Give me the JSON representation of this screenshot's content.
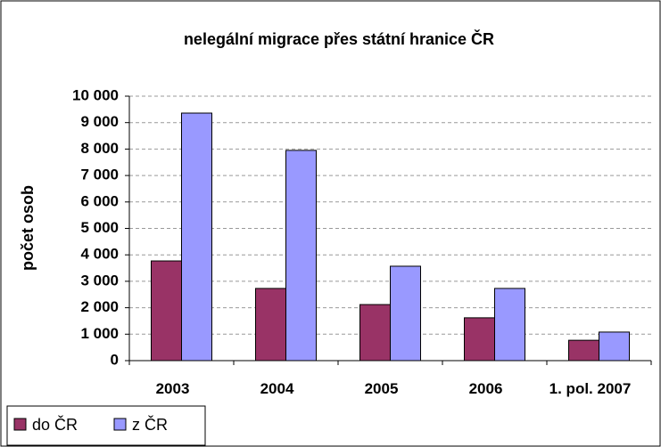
{
  "chart_data": {
    "type": "bar",
    "title": "nelegální migrace přes státní hranice ČR",
    "ylabel": "počet osob",
    "categories": [
      "2003",
      "2004",
      "2005",
      "2006",
      "1. pol. 2007"
    ],
    "series": [
      {
        "name": "do ČR",
        "color": "#993366",
        "values": [
          3770,
          2730,
          2120,
          1620,
          770
        ]
      },
      {
        "name": "z ČR",
        "color": "#9999ff",
        "values": [
          9360,
          7950,
          3570,
          2730,
          1080
        ]
      }
    ],
    "ylim": [
      0,
      10000
    ],
    "yticks": [
      0,
      {
        "value": 1000,
        "label": "1 000"
      },
      {
        "value": 2000,
        "label": "2 000"
      },
      {
        "value": 3000,
        "label": "3 000"
      },
      {
        "value": 4000,
        "label": "4 000"
      },
      {
        "value": 5000,
        "label": "5 000"
      },
      {
        "value": 6000,
        "label": "6 000"
      },
      {
        "value": 7000,
        "label": "7 000"
      },
      {
        "value": 8000,
        "label": "8 000"
      },
      {
        "value": 9000,
        "label": "9 000"
      },
      {
        "value": 10000,
        "label": "10 000"
      }
    ],
    "grid": true,
    "legend": "bottom-left"
  }
}
